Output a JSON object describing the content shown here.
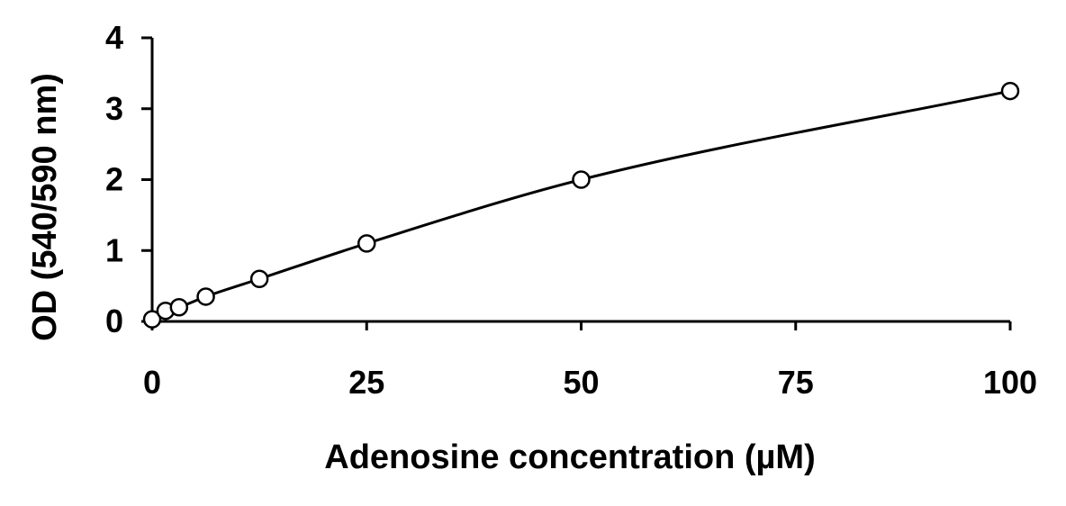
{
  "chart_data": {
    "type": "scatter",
    "title": "",
    "xlabel": "Adenosine concentration (µM)",
    "ylabel": "OD (540/590 nm)",
    "xlim": [
      0,
      100
    ],
    "ylim": [
      0,
      4
    ],
    "x_ticks": [
      "0",
      "25",
      "50",
      "75",
      "100"
    ],
    "y_ticks": [
      "0",
      "1",
      "2",
      "3",
      "4"
    ],
    "grid": false,
    "legend": "none",
    "marker": "open-circle",
    "fit_line": "smooth-curve",
    "series": [
      {
        "x": [
          0,
          1.56,
          3.13,
          6.25,
          12.5,
          25,
          50,
          100
        ],
        "y": [
          0.03,
          0.15,
          0.2,
          0.35,
          0.6,
          1.1,
          2.0,
          3.25
        ]
      }
    ]
  }
}
